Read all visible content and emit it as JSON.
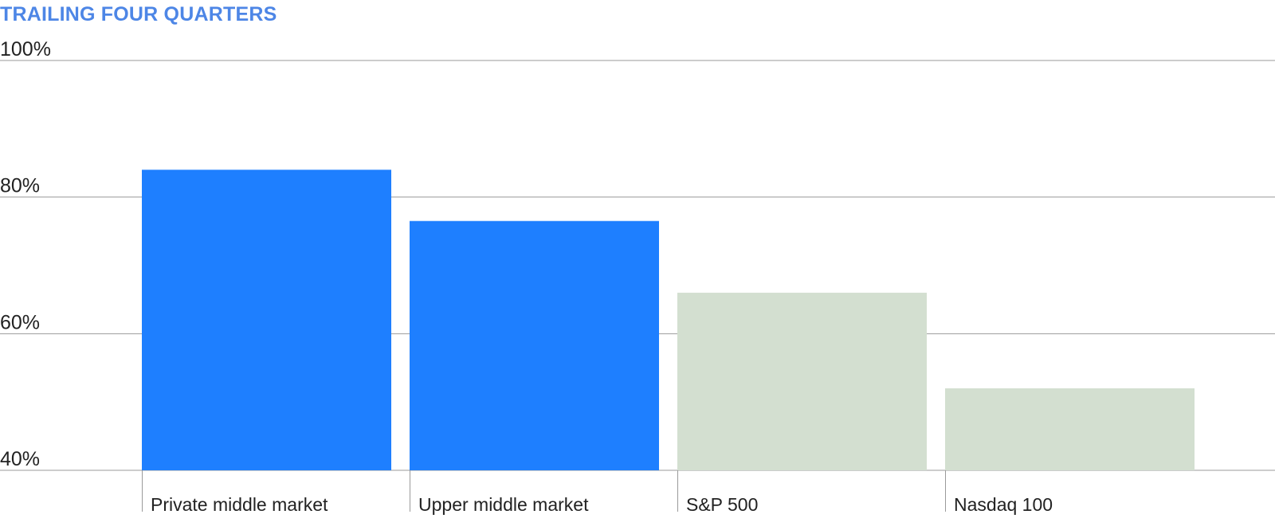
{
  "chart_data": {
    "type": "bar",
    "title": "TRAILING FOUR QUARTERS",
    "xlabel": "",
    "ylabel": "",
    "categories": [
      "Private middle market",
      "Upper middle market",
      "S&P 500",
      "Nasdaq 100"
    ],
    "values": [
      84,
      76.5,
      66,
      52
    ],
    "bar_colors": [
      "#1e7fff",
      "#1e7fff",
      "#d3dfd0",
      "#d3dfd0"
    ],
    "ylim": [
      40,
      100
    ],
    "yticks": [
      40,
      60,
      80,
      100
    ],
    "ytick_labels": [
      "40%",
      "60%",
      "80%",
      "100%"
    ],
    "grid": true,
    "legend": "none"
  },
  "colors": {
    "title": "#4d86e6",
    "gridline": "#9a9a9a",
    "text": "#222222"
  }
}
